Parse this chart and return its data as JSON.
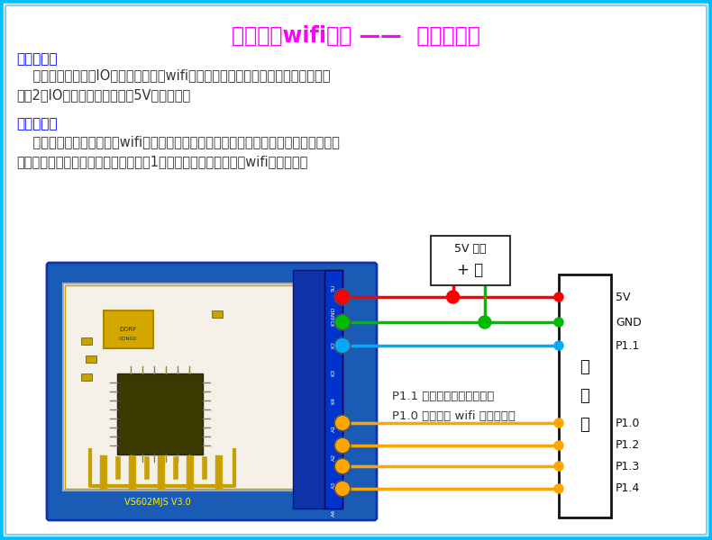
{
  "title": "单片机与wifi模块 ——  实物连接图",
  "title_color": "#FF00FF",
  "title_fontsize": 17,
  "bg_color": "#EEF6FF",
  "border_outer_color": "#00BFFF",
  "border_inner_color": "#87CEEB",
  "label1": "接线原理：",
  "label1_color": "#0000FF",
  "content1_line1": "    此组合采用单片机IO口连接方式，即wifi模块的输出口和配对键口分别与单片机的",
  "content1_line2": "任意2个IO口链接，然后都接上5V电源即可。",
  "label2": "组合作用：",
  "label2_color": "#0000FF",
  "content2_line1": "    此组合单片机可通过获取wifi模块的输出口高低电平情况，从而给单片机设备实现远程",
  "content2_line2": "控制功能。相当于手机远程给了单片机1个信号，给单片机加上了wifi控制功能。",
  "text_color": "#333333",
  "power_label": "5V 电源",
  "power_pm": "+ －",
  "anno_line1": "P1.1 口为控制进入配对状态",
  "anno_line2": "P1.0 口为获取 wifi 的高低电平",
  "mcu_label": "单\n\n片\n\n机",
  "pin_names": [
    "5V",
    "GND",
    "P1.1",
    "P1.0",
    "P1.2",
    "P1.3",
    "P1.4"
  ],
  "pin_colors": [
    "#FF0000",
    "#00BB00",
    "#00AAFF",
    "#FFA500",
    "#FFA500",
    "#FFA500",
    "#FFA500"
  ],
  "board_pin_labels": [
    "5U",
    "K16ND",
    "K2",
    "K3",
    "K4",
    "A1",
    "A2",
    "A3",
    "A4"
  ]
}
